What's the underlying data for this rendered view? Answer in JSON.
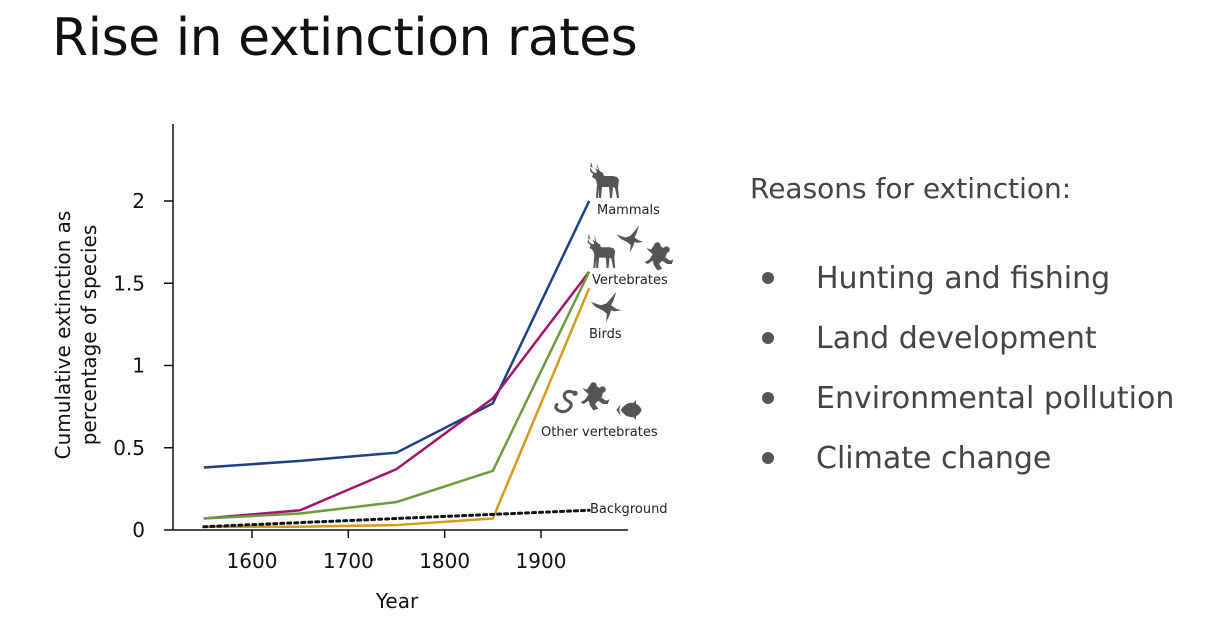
{
  "slide": {
    "title": "Rise in extinction rates"
  },
  "reasons": {
    "heading": "Reasons for extinction:",
    "items": [
      "Hunting and fishing",
      "Land development",
      "Environmental pollution",
      "Climate change"
    ]
  },
  "chart_data": {
    "type": "line",
    "title": "",
    "xlabel": "Year",
    "ylabel_lines": [
      "Cumulative extinction as",
      "percentage of species"
    ],
    "xlim": [
      1505,
      1995
    ],
    "ylim": [
      0,
      2.5
    ],
    "x_ticks": [
      "1600",
      "1700",
      "1800",
      "1900"
    ],
    "y_ticks": [
      "0",
      "0.5",
      "1",
      "1.5",
      "2"
    ],
    "grid": false,
    "x": [
      1550,
      1650,
      1750,
      1850,
      1950
    ],
    "series": [
      {
        "name": "Mammals",
        "color": "#1f3f86",
        "dashed": false,
        "x": [
          1550,
          1650,
          1750,
          1850,
          1950
        ],
        "values": [
          0.38,
          0.42,
          0.47,
          0.77,
          2.0
        ]
      },
      {
        "name": "Vertebrates",
        "color": "#a0156a",
        "dashed": false,
        "x": [
          1550,
          1650,
          1750,
          1850,
          1950
        ],
        "values": [
          0.07,
          0.12,
          0.37,
          0.8,
          1.57
        ]
      },
      {
        "name": "Birds",
        "color": "#6f9a3e",
        "dashed": false,
        "x": [
          1550,
          1650,
          1750,
          1850,
          1950
        ],
        "values": [
          0.07,
          0.1,
          0.17,
          0.36,
          1.57
        ]
      },
      {
        "name": "Other vertebrates",
        "color": "#d99a1c",
        "dashed": false,
        "x": [
          1550,
          1650,
          1750,
          1850,
          1950
        ],
        "values": [
          0.02,
          0.02,
          0.03,
          0.07,
          1.47
        ]
      },
      {
        "name": "Background",
        "color": "#111111",
        "dashed": true,
        "x": [
          1550,
          1950
        ],
        "values": [
          0.02,
          0.12
        ]
      }
    ],
    "icons": {
      "Mammals": [
        "deer-icon"
      ],
      "Vertebrates": [
        "deer-icon",
        "bird-icon",
        "frog-icon"
      ],
      "Birds": [
        "bird-icon"
      ],
      "Other vertebrates": [
        "snake-icon",
        "frog-icon",
        "fish-icon"
      ]
    }
  }
}
